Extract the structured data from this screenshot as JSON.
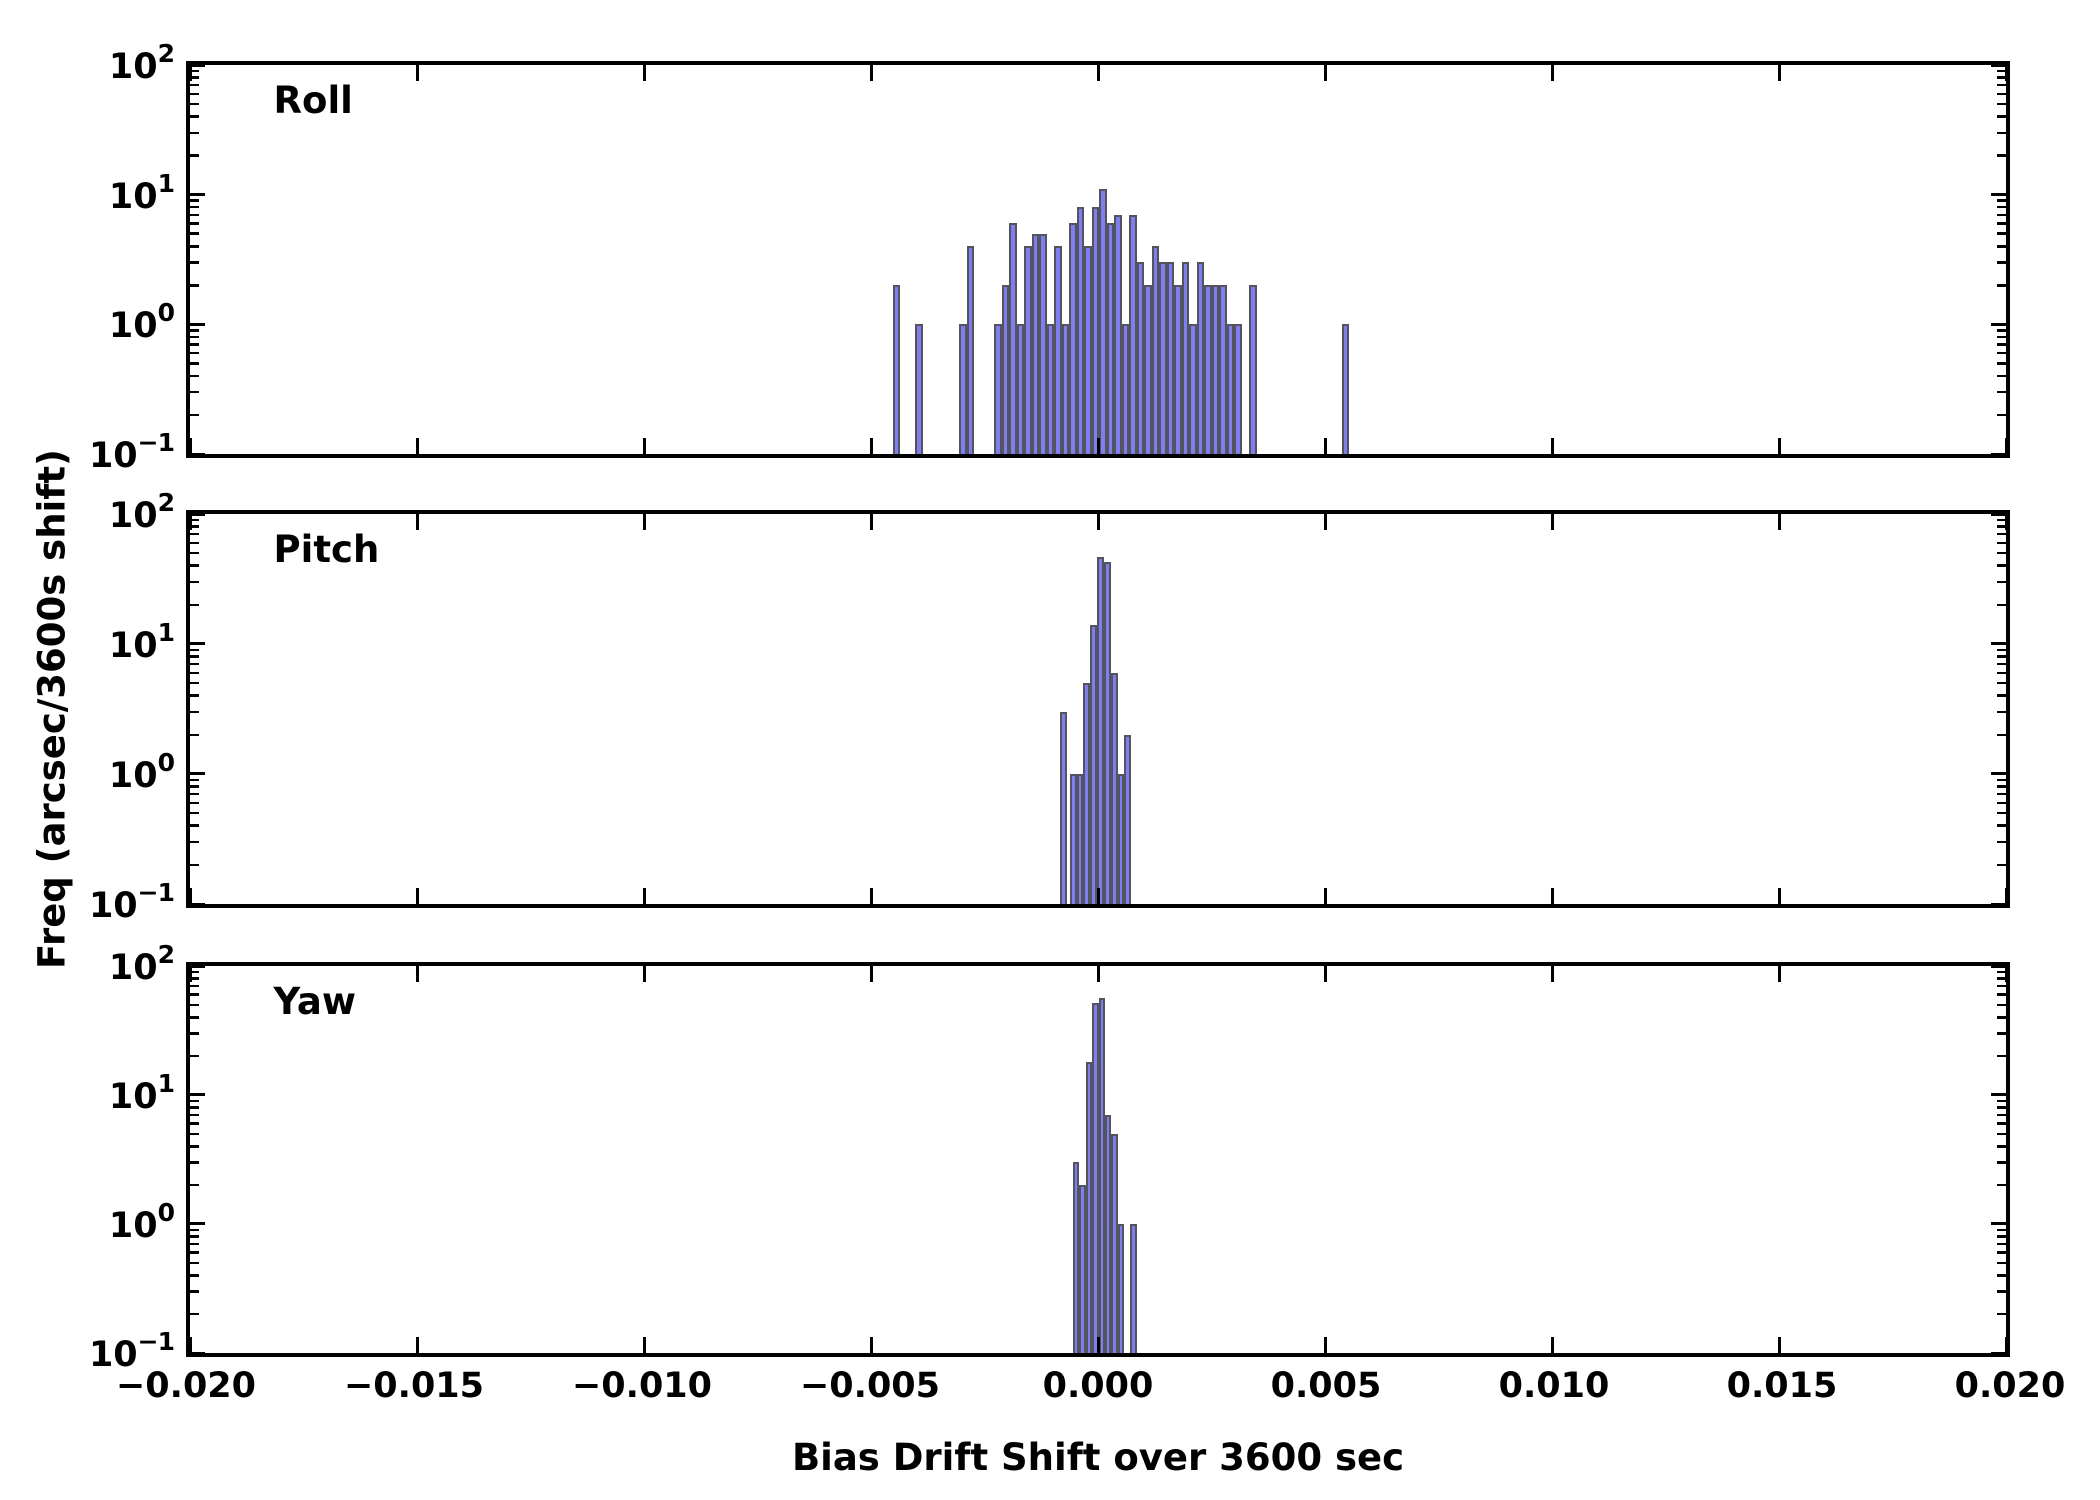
{
  "figure": {
    "background": "#ffffff",
    "axis_color": "#000000",
    "bar_fill": "#7e7ef1",
    "bar_edge": "#54545e",
    "x_axis_label": "Bias Drift Shift over 3600 sec",
    "y_axis_label": "Freq (arcsec/3600s shift)",
    "x_major_ticks": [
      -0.02,
      -0.015,
      -0.01,
      -0.005,
      0.0,
      0.005,
      0.01,
      0.015,
      0.02
    ],
    "x_tick_labels": [
      "−0.020",
      "−0.015",
      "−0.010",
      "−0.005",
      "0.000",
      "0.005",
      "0.010",
      "0.015",
      "0.020"
    ],
    "y_tick_base": "10",
    "y_ticks": [
      {
        "value": 100,
        "exponent": "2"
      },
      {
        "value": 10,
        "exponent": "1"
      },
      {
        "value": 1,
        "exponent": "0"
      },
      {
        "value": 0.1,
        "exponent": "−1"
      }
    ]
  },
  "chart_data": [
    {
      "type": "bar",
      "subtype": "histogram",
      "panel_label": "Roll",
      "xlabel": "Bias Drift Shift over 3600 sec",
      "ylabel": "Freq (arcsec/3600s shift)",
      "xlim": [
        -0.02,
        0.02
      ],
      "ylim": [
        0.1,
        100
      ],
      "yscale": "log",
      "grid": false,
      "bin_width": 0.000165,
      "bars": [
        [
          -0.00452,
          2
        ],
        [
          -0.00402,
          1
        ],
        [
          -0.003055,
          1
        ],
        [
          -0.00289,
          4
        ],
        [
          -0.00228,
          1
        ],
        [
          -0.002115,
          2
        ],
        [
          -0.00195,
          6
        ],
        [
          -0.001785,
          1
        ],
        [
          -0.00162,
          4
        ],
        [
          -0.001455,
          5
        ],
        [
          -0.00129,
          5
        ],
        [
          -0.001125,
          1
        ],
        [
          -0.00096,
          4
        ],
        [
          -0.000795,
          1
        ],
        [
          -0.00063,
          6
        ],
        [
          -0.000465,
          8
        ],
        [
          -0.0003,
          4
        ],
        [
          -0.000135,
          8
        ],
        [
          3e-05,
          11
        ],
        [
          0.000195,
          6
        ],
        [
          0.00036,
          7
        ],
        [
          0.000525,
          1
        ],
        [
          0.00069,
          7
        ],
        [
          0.000855,
          3
        ],
        [
          0.00102,
          2
        ],
        [
          0.001185,
          4
        ],
        [
          0.00135,
          3
        ],
        [
          0.001515,
          3
        ],
        [
          0.00168,
          2
        ],
        [
          0.001845,
          3
        ],
        [
          0.00201,
          1
        ],
        [
          0.002175,
          3
        ],
        [
          0.00234,
          2
        ],
        [
          0.002505,
          2
        ],
        [
          0.00267,
          2
        ],
        [
          0.002835,
          1
        ],
        [
          0.003,
          1
        ],
        [
          0.00333,
          2
        ],
        [
          0.00537,
          1
        ]
      ]
    },
    {
      "type": "bar",
      "subtype": "histogram",
      "panel_label": "Pitch",
      "xlabel": "Bias Drift Shift over 3600 sec",
      "ylabel": "Freq (arcsec/3600s shift)",
      "xlim": [
        -0.02,
        0.02
      ],
      "ylim": [
        0.1,
        100
      ],
      "yscale": "log",
      "grid": false,
      "bin_width": 0.00015,
      "bars": [
        [
          -0.000833,
          3
        ],
        [
          -0.00062,
          1
        ],
        [
          -0.00047,
          1
        ],
        [
          -0.00032,
          5
        ],
        [
          -0.00017,
          14
        ],
        [
          -2e-05,
          47
        ],
        [
          0.00013,
          43
        ],
        [
          0.00028,
          6
        ],
        [
          0.00043,
          1
        ],
        [
          0.00058,
          2
        ]
      ]
    },
    {
      "type": "bar",
      "subtype": "histogram",
      "panel_label": "Yaw",
      "xlabel": "Bias Drift Shift over 3600 sec",
      "ylabel": "Freq (arcsec/3600s shift)",
      "xlim": [
        -0.02,
        0.02
      ],
      "ylim": [
        0.1,
        100
      ],
      "yscale": "log",
      "grid": false,
      "bin_width": 0.00014,
      "bars": [
        [
          -0.000548,
          3
        ],
        [
          -0.000408,
          2
        ],
        [
          -0.000268,
          18
        ],
        [
          -0.000128,
          52
        ],
        [
          1.2e-05,
          56
        ],
        [
          0.000152,
          7
        ],
        [
          0.000292,
          5
        ],
        [
          0.000432,
          1
        ],
        [
          0.000712,
          1
        ]
      ]
    }
  ]
}
